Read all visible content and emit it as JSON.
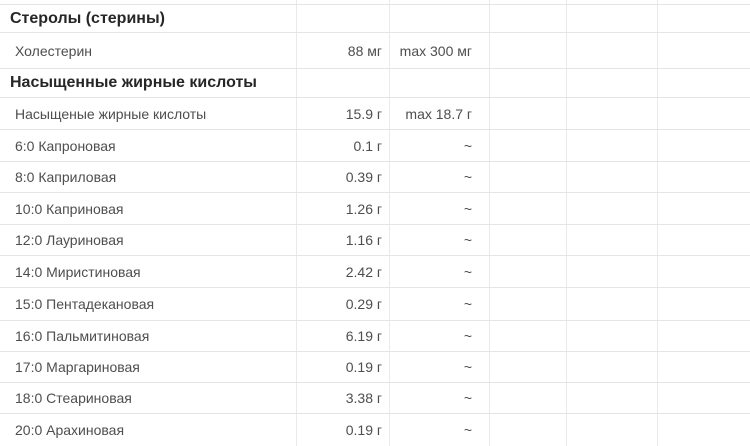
{
  "colors": {
    "background": "#ffffff",
    "grid_line": "#e4e4e4",
    "text_primary": "#262626",
    "text_secondary": "#4e4e4e"
  },
  "table": {
    "columns": [
      "name",
      "amount",
      "norm",
      "",
      "",
      ""
    ],
    "rows": [
      {
        "type": "section",
        "name": "Стеролы (стерины)",
        "amount": "",
        "norm": ""
      },
      {
        "type": "data",
        "name": "Холестерин",
        "amount": "88 мг",
        "norm": "max 300 мг"
      },
      {
        "type": "section",
        "name": "Насыщенные жирные кислоты",
        "amount": "",
        "norm": ""
      },
      {
        "type": "data",
        "name": "Насыщеные жирные кислоты",
        "amount": "15.9 г",
        "norm": "max 18.7 г"
      },
      {
        "type": "data",
        "name": "6:0 Капроновая",
        "amount": "0.1 г",
        "norm": "~"
      },
      {
        "type": "data",
        "name": "8:0 Каприловая",
        "amount": "0.39 г",
        "norm": "~"
      },
      {
        "type": "data",
        "name": "10:0 Каприновая",
        "amount": "1.26 г",
        "norm": "~"
      },
      {
        "type": "data",
        "name": "12:0 Лауриновая",
        "amount": "1.16 г",
        "norm": "~"
      },
      {
        "type": "data",
        "name": "14:0 Миристиновая",
        "amount": "2.42 г",
        "norm": "~"
      },
      {
        "type": "data",
        "name": "15:0 Пентадекановая",
        "amount": "0.29 г",
        "norm": "~"
      },
      {
        "type": "data",
        "name": "16:0 Пальмитиновая",
        "amount": "6.19 г",
        "norm": "~"
      },
      {
        "type": "data",
        "name": "17:0 Маргариновая",
        "amount": "0.19 г",
        "norm": "~"
      },
      {
        "type": "data",
        "name": "18:0 Стеариновая",
        "amount": "3.38 г",
        "norm": "~"
      },
      {
        "type": "data",
        "name": "20:0 Арахиновая",
        "amount": "0.19 г",
        "norm": "~"
      }
    ]
  }
}
